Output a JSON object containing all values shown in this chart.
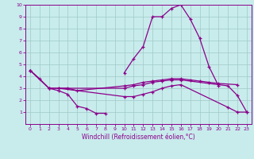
{
  "xlabel": "Windchill (Refroidissement éolien,°C)",
  "background_color": "#c8ecec",
  "grid_color": "#a0c8c8",
  "line_color": "#8b008b",
  "xlim": [
    -0.5,
    23.5
  ],
  "ylim": [
    0,
    10
  ],
  "xticks": [
    0,
    1,
    2,
    3,
    4,
    5,
    6,
    7,
    8,
    9,
    10,
    11,
    12,
    13,
    14,
    15,
    16,
    17,
    18,
    19,
    20,
    21,
    22,
    23
  ],
  "yticks": [
    1,
    2,
    3,
    4,
    5,
    6,
    7,
    8,
    9,
    10
  ],
  "lines": [
    {
      "segments": [
        {
          "x": [
            0,
            1,
            2,
            3,
            4,
            5,
            6,
            7,
            8
          ],
          "y": [
            4.5,
            3.8,
            3.0,
            2.8,
            2.5,
            1.5,
            1.3,
            0.9,
            0.9
          ]
        },
        {
          "x": [
            10,
            11,
            12,
            13,
            14,
            15,
            16,
            17,
            18,
            19,
            20
          ],
          "y": [
            4.3,
            5.5,
            6.5,
            9.0,
            9.0,
            9.7,
            10.0,
            8.8,
            7.2,
            4.8,
            3.2
          ]
        }
      ]
    },
    {
      "segments": [
        {
          "x": [
            0,
            2,
            3,
            4,
            5,
            10,
            11,
            12,
            13,
            14,
            15,
            16,
            17,
            18,
            19,
            20,
            22
          ],
          "y": [
            4.5,
            3.0,
            3.0,
            3.0,
            2.8,
            3.2,
            3.3,
            3.5,
            3.6,
            3.7,
            3.8,
            3.8,
            3.7,
            3.6,
            3.5,
            3.4,
            3.3
          ]
        }
      ]
    },
    {
      "segments": [
        {
          "x": [
            0,
            2,
            10,
            11,
            12,
            13,
            14,
            15,
            16,
            21,
            22,
            23
          ],
          "y": [
            4.5,
            3.0,
            3.0,
            3.2,
            3.3,
            3.5,
            3.6,
            3.7,
            3.7,
            3.2,
            2.4,
            1.0
          ]
        }
      ]
    },
    {
      "segments": [
        {
          "x": [
            3,
            10,
            11,
            12,
            13,
            14,
            15,
            16,
            21,
            22,
            23
          ],
          "y": [
            3.0,
            2.3,
            2.3,
            2.5,
            2.7,
            3.0,
            3.2,
            3.3,
            1.4,
            1.0,
            1.0
          ]
        }
      ]
    }
  ]
}
